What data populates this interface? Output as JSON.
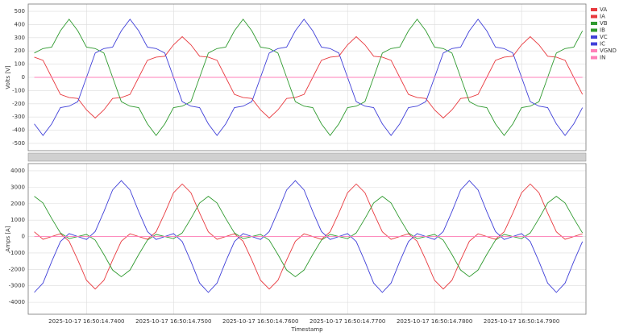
{
  "chart_data": [
    {
      "type": "line",
      "ylabel": "Volts [V]",
      "x": [
        14.734,
        14.735,
        14.736,
        14.737,
        14.738,
        14.739,
        14.74,
        14.741,
        14.742,
        14.743,
        14.744,
        14.745,
        14.746,
        14.747,
        14.748,
        14.749,
        14.75,
        14.751,
        14.752,
        14.753,
        14.754,
        14.755,
        14.756,
        14.757,
        14.758,
        14.759,
        14.76,
        14.761,
        14.762,
        14.763,
        14.764,
        14.765,
        14.766,
        14.767,
        14.768,
        14.769,
        14.77,
        14.771,
        14.772,
        14.773,
        14.774,
        14.775,
        14.776,
        14.777,
        14.778,
        14.779,
        14.78,
        14.781,
        14.782,
        14.783,
        14.784,
        14.785,
        14.786,
        14.787,
        14.788,
        14.789,
        14.79,
        14.791,
        14.792,
        14.793,
        14.794,
        14.795,
        14.796,
        14.797
      ],
      "xlim": [
        14.7333,
        14.7974
      ],
      "xticks": [
        14.74,
        14.75,
        14.76,
        14.77,
        14.78,
        14.79
      ],
      "ylim": [
        -555,
        555
      ],
      "yticks": [
        -500,
        -400,
        -300,
        -200,
        -100,
        0,
        100,
        200,
        300,
        400,
        500
      ],
      "grid": true,
      "series": [
        {
          "name": "VA",
          "color": "#e8393e",
          "values": [
            153,
            129,
            0,
            -129,
            -153,
            -160,
            -246,
            -308,
            -246,
            -160,
            -153,
            -129,
            0,
            129,
            153,
            160,
            246,
            308,
            246,
            160,
            153,
            129,
            0,
            -129,
            -153,
            -160,
            -246,
            -308,
            -246,
            -160,
            -153,
            -129,
            0,
            129,
            153,
            160,
            246,
            308,
            246,
            160,
            153,
            129,
            0,
            -129,
            -153,
            -160,
            -246,
            -308,
            -246,
            -160,
            -153,
            -129,
            0,
            129,
            153,
            160,
            246,
            308,
            246,
            160,
            153,
            129,
            0,
            -129
          ]
        },
        {
          "name": "VB",
          "color": "#2f9a2f",
          "values": [
            184,
            218,
            229,
            352,
            440,
            352,
            229,
            218,
            184,
            0,
            -184,
            -218,
            -229,
            -352,
            -440,
            -352,
            -229,
            -218,
            -184,
            0,
            184,
            218,
            229,
            352,
            440,
            352,
            229,
            218,
            184,
            0,
            -184,
            -218,
            -229,
            -352,
            -440,
            -352,
            -229,
            -218,
            -184,
            0,
            184,
            218,
            229,
            352,
            440,
            352,
            229,
            218,
            184,
            0,
            -184,
            -218,
            -229,
            -352,
            -440,
            -352,
            -229,
            -218,
            -184,
            0,
            184,
            218,
            229,
            352
          ]
        },
        {
          "name": "VC",
          "color": "#4040d8",
          "values": [
            -352,
            -440,
            -352,
            -229,
            -218,
            -184,
            0,
            184,
            218,
            229,
            352,
            440,
            352,
            229,
            218,
            184,
            0,
            -184,
            -218,
            -229,
            -352,
            -440,
            -352,
            -229,
            -218,
            -184,
            0,
            184,
            218,
            229,
            352,
            440,
            352,
            229,
            218,
            184,
            0,
            -184,
            -218,
            -229,
            -352,
            -440,
            -352,
            -229,
            -218,
            -184,
            0,
            184,
            218,
            229,
            352,
            440,
            352,
            229,
            218,
            184,
            0,
            -184,
            -218,
            -229,
            -352,
            -440,
            -352,
            -229
          ]
        },
        {
          "name": "VGND",
          "color": "#ff7fb8",
          "values": [
            0,
            0,
            0,
            0,
            0,
            0,
            0,
            0,
            0,
            0,
            0,
            0,
            0,
            0,
            0,
            0,
            0,
            0,
            0,
            0,
            0,
            0,
            0,
            0,
            0,
            0,
            0,
            0,
            0,
            0,
            0,
            0,
            0,
            0,
            0,
            0,
            0,
            0,
            0,
            0,
            0,
            0,
            0,
            0,
            0,
            0,
            0,
            0,
            0,
            0,
            0,
            0,
            0,
            0,
            0,
            0,
            0,
            0,
            0,
            0,
            0,
            0,
            0,
            0
          ]
        }
      ]
    },
    {
      "type": "line",
      "ylabel": "Amps [A]",
      "xlabel": "Timestamp",
      "x": [
        14.734,
        14.735,
        14.736,
        14.737,
        14.738,
        14.739,
        14.74,
        14.741,
        14.742,
        14.743,
        14.744,
        14.745,
        14.746,
        14.747,
        14.748,
        14.749,
        14.75,
        14.751,
        14.752,
        14.753,
        14.754,
        14.755,
        14.756,
        14.757,
        14.758,
        14.759,
        14.76,
        14.761,
        14.762,
        14.763,
        14.764,
        14.765,
        14.766,
        14.767,
        14.768,
        14.769,
        14.77,
        14.771,
        14.772,
        14.773,
        14.774,
        14.775,
        14.776,
        14.777,
        14.778,
        14.779,
        14.78,
        14.781,
        14.782,
        14.783,
        14.784,
        14.785,
        14.786,
        14.787,
        14.788,
        14.789,
        14.79,
        14.791,
        14.792,
        14.793,
        14.794,
        14.795,
        14.796,
        14.797
      ],
      "xlim": [
        14.7333,
        14.7974
      ],
      "xticks": [
        {
          "value": 14.74,
          "label": "2025-10-17 16:50:14.7400"
        },
        {
          "value": 14.75,
          "label": "2025-10-17 16:50:14.7500"
        },
        {
          "value": 14.76,
          "label": "2025-10-17 16:50:14.7600"
        },
        {
          "value": 14.77,
          "label": "2025-10-17 16:50:14.7700"
        },
        {
          "value": 14.78,
          "label": "2025-10-17 16:50:14.7800"
        },
        {
          "value": 14.79,
          "label": "2025-10-17 16:50:14.7900"
        }
      ],
      "ylim": [
        -4730,
        4440
      ],
      "yticks": [
        -4000,
        -3000,
        -2000,
        -1000,
        0,
        1000,
        2000,
        3000,
        4000
      ],
      "grid": true,
      "series": [
        {
          "name": "IA",
          "color": "#e8393e",
          "values": [
            288,
            -168,
            0,
            168,
            -288,
            -1430,
            -2664,
            -3196,
            -2664,
            -1430,
            -288,
            168,
            0,
            -168,
            288,
            1430,
            2664,
            3196,
            2664,
            1430,
            288,
            -168,
            0,
            168,
            -288,
            -1430,
            -2664,
            -3196,
            -2664,
            -1430,
            -288,
            168,
            0,
            -168,
            288,
            1430,
            2664,
            3196,
            2664,
            1430,
            288,
            -168,
            0,
            168,
            -288,
            -1430,
            -2664,
            -3196,
            -2664,
            -1430,
            -288,
            168,
            0,
            -168,
            288,
            1430,
            2664,
            3196,
            2664,
            1430,
            288,
            -168,
            0,
            168
          ]
        },
        {
          "name": "IB",
          "color": "#2f9a2f",
          "values": [
            2448,
            2040,
            1095,
            220,
            -129,
            0,
            129,
            -220,
            -1095,
            -2040,
            -2448,
            -2040,
            -1095,
            -220,
            129,
            0,
            -129,
            220,
            1095,
            2040,
            2448,
            2040,
            1095,
            220,
            -129,
            0,
            129,
            -220,
            -1095,
            -2040,
            -2448,
            -2040,
            -1095,
            -220,
            129,
            0,
            -129,
            220,
            1095,
            2040,
            2448,
            2040,
            1095,
            220,
            -129,
            0,
            129,
            -220,
            -1095,
            -2040,
            -2448,
            -2040,
            -1095,
            -220,
            129,
            0,
            -129,
            220,
            1095,
            2040,
            2448,
            2040,
            1095,
            220
          ]
        },
        {
          "name": "IC",
          "color": "#4040d8",
          "values": [
            -3400,
            -2834,
            -1521,
            -306,
            179,
            0,
            -179,
            306,
            1521,
            2834,
            3400,
            2834,
            1521,
            306,
            -179,
            0,
            179,
            -306,
            -1521,
            -2834,
            -3400,
            -2834,
            -1521,
            -306,
            179,
            0,
            -179,
            306,
            1521,
            2834,
            3400,
            2834,
            1521,
            306,
            -179,
            0,
            179,
            -306,
            -1521,
            -2834,
            -3400,
            -2834,
            -1521,
            -306,
            179,
            0,
            -179,
            306,
            1521,
            2834,
            3400,
            2834,
            1521,
            306,
            -179,
            0,
            179,
            -306,
            -1521,
            -2834,
            -3400,
            -2834,
            -1521,
            -306
          ]
        },
        {
          "name": "IN",
          "color": "#ff7fb8",
          "values": [
            0,
            0,
            0,
            0,
            0,
            0,
            0,
            0,
            0,
            0,
            0,
            0,
            0,
            0,
            0,
            0,
            0,
            0,
            0,
            0,
            0,
            0,
            0,
            0,
            0,
            0,
            0,
            0,
            0,
            0,
            0,
            0,
            0,
            0,
            0,
            0,
            0,
            0,
            0,
            0,
            0,
            0,
            0,
            0,
            0,
            0,
            0,
            0,
            0,
            0,
            0,
            0,
            0,
            0,
            0,
            0,
            0,
            0,
            0,
            0,
            0,
            0,
            0,
            0
          ]
        }
      ]
    }
  ]
}
